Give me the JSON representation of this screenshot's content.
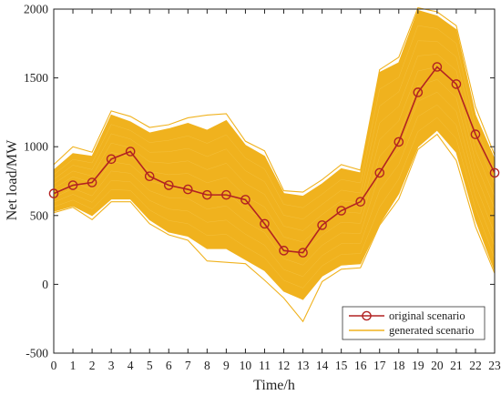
{
  "chart_data": {
    "type": "line",
    "xlabel": "Time/h",
    "ylabel": "Net load/MW",
    "xlim": [
      0,
      23
    ],
    "ylim": [
      -500,
      2000
    ],
    "x": [
      0,
      1,
      2,
      3,
      4,
      5,
      6,
      7,
      8,
      9,
      10,
      11,
      12,
      13,
      14,
      15,
      16,
      17,
      18,
      19,
      20,
      21,
      22,
      23
    ],
    "x_ticks": [
      "0",
      "1",
      "2",
      "3",
      "4",
      "5",
      "6",
      "7",
      "8",
      "9",
      "10",
      "11",
      "12",
      "13",
      "14",
      "15",
      "16",
      "17",
      "18",
      "19",
      "20",
      "21",
      "22",
      "23"
    ],
    "y_ticks": [
      "-500",
      "0",
      "500",
      "1000",
      "1500",
      "2000"
    ],
    "y_tick_values": [
      -500,
      0,
      500,
      1000,
      1500,
      2000
    ],
    "grid": false,
    "legend_position": "bottom-right",
    "series": [
      {
        "name": "original scenario",
        "color": "#B22222",
        "marker": "circle",
        "values": [
          660,
          720,
          740,
          910,
          965,
          785,
          720,
          690,
          650,
          650,
          615,
          440,
          245,
          230,
          430,
          535,
          600,
          810,
          1035,
          1395,
          1580,
          1455,
          1090,
          810
        ]
      },
      {
        "name": "generated scenario",
        "color": "#F0B21E",
        "band_upper": [
          830,
          950,
          930,
          1230,
          1180,
          1100,
          1130,
          1170,
          1120,
          1190,
          1010,
          930,
          660,
          640,
          730,
          840,
          810,
          1540,
          1610,
          1990,
          1950,
          1850,
          1230,
          910
        ],
        "band_lower": [
          530,
          570,
          500,
          620,
          620,
          470,
          380,
          350,
          260,
          260,
          180,
          100,
          -50,
          -110,
          60,
          140,
          150,
          440,
          660,
          1000,
          1120,
          960,
          470,
          100
        ],
        "outlier_upper": [
          870,
          1000,
          960,
          1260,
          1220,
          1140,
          1160,
          1210,
          1230,
          1240,
          1040,
          970,
          680,
          670,
          760,
          870,
          830,
          1560,
          1650,
          2010,
          1980,
          1880,
          1290,
          940
        ],
        "outlier_lower": [
          520,
          560,
          470,
          600,
          600,
          440,
          360,
          320,
          170,
          160,
          150,
          30,
          -100,
          -270,
          20,
          110,
          120,
          430,
          620,
          980,
          1090,
          900,
          420,
          80
        ]
      }
    ]
  }
}
